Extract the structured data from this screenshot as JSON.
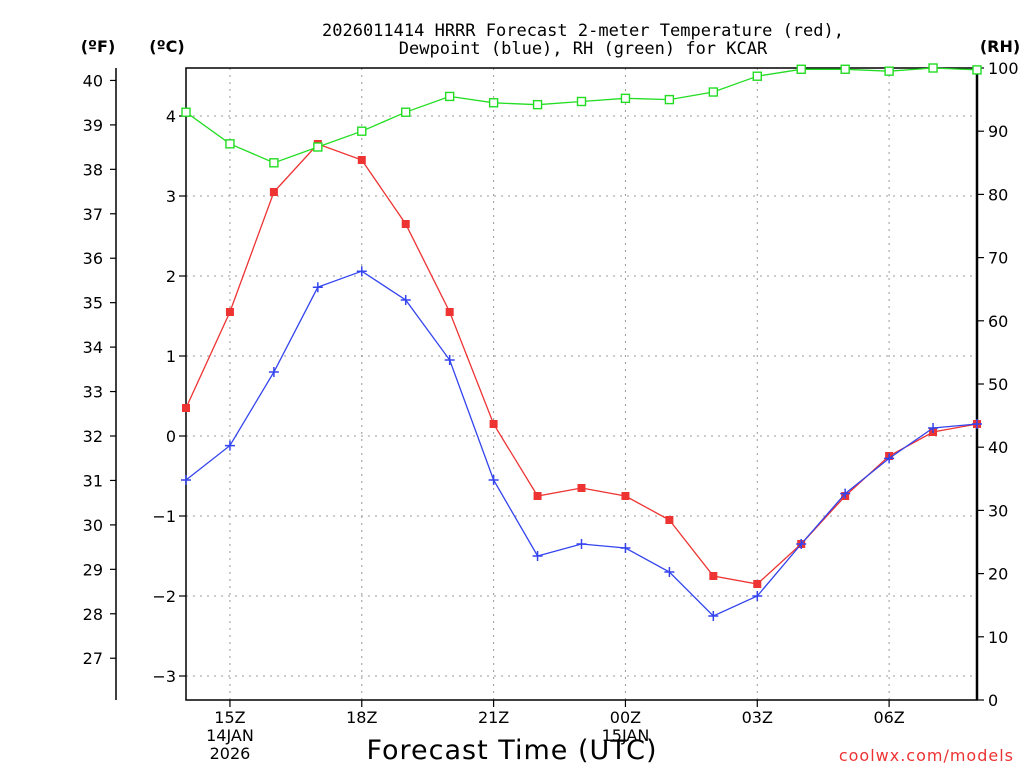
{
  "title_line1": "2026011414 HRRR Forecast 2-meter Temperature (red),",
  "title_line2": "Dewpoint (blue), RH (green) for KCAR",
  "unit_f": "(ºF)",
  "unit_c": "(ºC)",
  "unit_rh": "(RH)",
  "credit": "coolwx.com/models",
  "colors": {
    "temp": "#ee3333",
    "dewpoint": "#3344ee",
    "rh": "#22dd22",
    "grid": "#999999"
  },
  "chart_data": {
    "type": "line",
    "xlabel": "Forecast Time (UTC)",
    "x_hours": [
      14,
      15,
      16,
      17,
      18,
      19,
      20,
      21,
      22,
      23,
      24,
      25,
      26,
      27,
      28,
      29,
      30,
      31,
      32
    ],
    "xlim": [
      14,
      32
    ],
    "x_ticks": [
      {
        "hour": 15,
        "label": "15Z",
        "sub1": "14JAN",
        "sub2": "2026"
      },
      {
        "hour": 18,
        "label": "18Z",
        "sub1": "",
        "sub2": ""
      },
      {
        "hour": 21,
        "label": "21Z",
        "sub1": "",
        "sub2": ""
      },
      {
        "hour": 24,
        "label": "00Z",
        "sub1": "15JAN",
        "sub2": ""
      },
      {
        "hour": 27,
        "label": "03Z",
        "sub1": "",
        "sub2": ""
      },
      {
        "hour": 30,
        "label": "06Z",
        "sub1": "",
        "sub2": ""
      }
    ],
    "ylim_c": [
      -3.3,
      4.6
    ],
    "yticks_c": [
      -3,
      -2,
      -1,
      0,
      1,
      2,
      3,
      4
    ],
    "yticks_f": [
      27,
      28,
      29,
      30,
      31,
      32,
      33,
      34,
      35,
      36,
      37,
      38,
      39,
      40
    ],
    "ylim_rh": [
      0,
      100
    ],
    "yticks_rh": [
      0,
      10,
      20,
      30,
      40,
      50,
      60,
      70,
      80,
      90,
      100
    ],
    "series": [
      {
        "name": "Temperature",
        "axis": "C",
        "marker": "filled-square",
        "values": [
          0.35,
          1.55,
          3.05,
          3.65,
          3.45,
          2.65,
          1.55,
          0.15,
          -0.75,
          -0.65,
          -0.75,
          -1.05,
          -1.75,
          -1.85,
          -1.35,
          -0.75,
          -0.25,
          0.05,
          0.15
        ]
      },
      {
        "name": "Dewpoint",
        "axis": "C",
        "marker": "plus",
        "values": [
          -0.55,
          -0.12,
          0.8,
          1.86,
          2.06,
          1.7,
          0.95,
          -0.55,
          -1.5,
          -1.35,
          -1.4,
          -1.7,
          -2.25,
          -2.0,
          -1.35,
          -0.72,
          -0.28,
          0.1,
          0.15
        ]
      },
      {
        "name": "RH",
        "axis": "RH",
        "marker": "open-square",
        "values": [
          93,
          88,
          85,
          87.5,
          90,
          93,
          95.5,
          94.5,
          94.2,
          94.7,
          95.2,
          95,
          96.2,
          98.7,
          99.8,
          99.8,
          99.5,
          100,
          99.7
        ]
      }
    ]
  }
}
